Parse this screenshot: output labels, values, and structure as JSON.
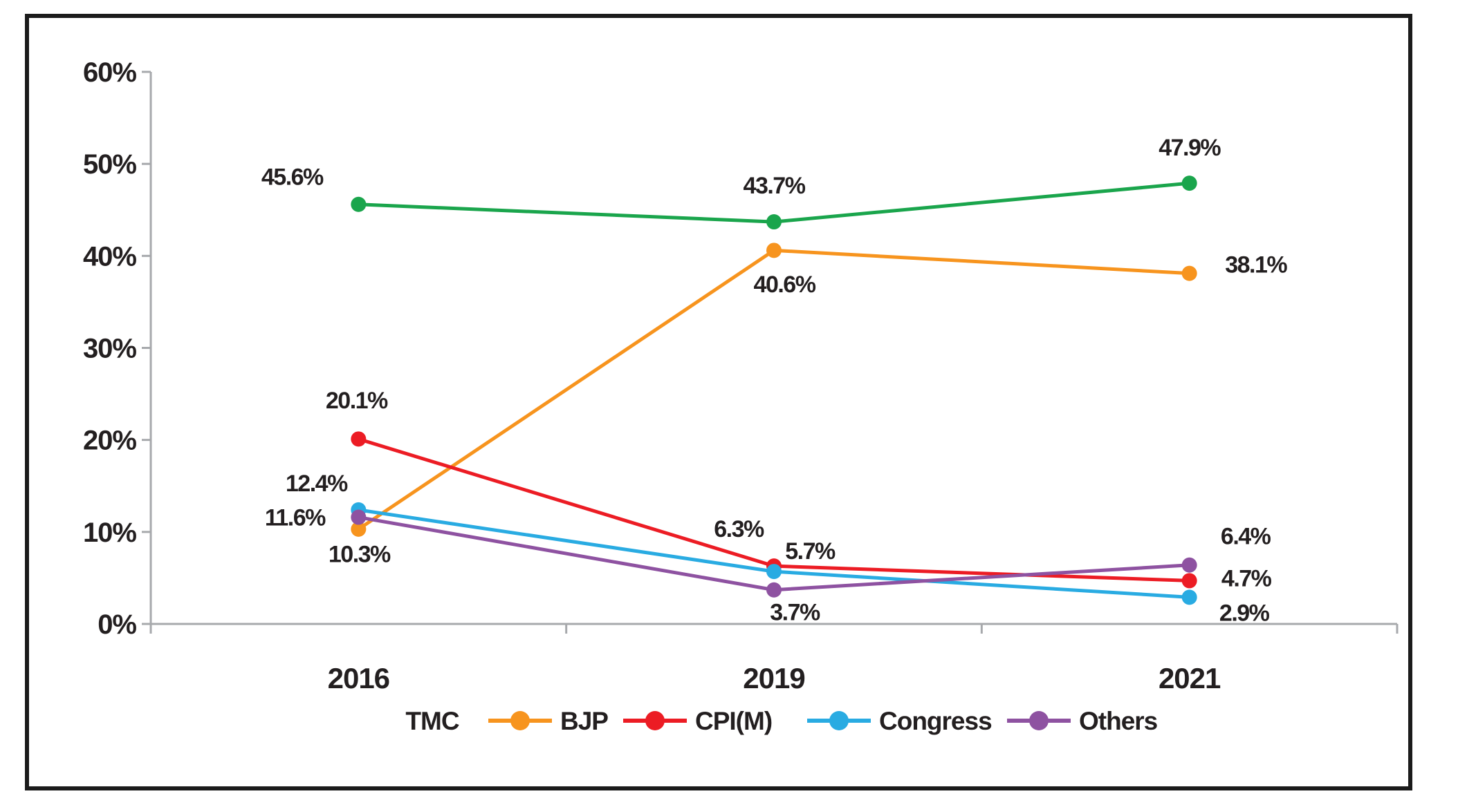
{
  "chart_data": {
    "type": "line",
    "title": "",
    "categories": [
      "2016",
      "2019",
      "2021"
    ],
    "series": [
      {
        "name": "TMC",
        "color": "#1AA54C",
        "values": [
          45.6,
          43.7,
          47.9
        ],
        "point_labels": [
          "45.6%",
          "43.7%",
          "47.9%"
        ],
        "legend_marker": false
      },
      {
        "name": "BJP",
        "color": "#F7941E",
        "values": [
          10.3,
          40.6,
          38.1
        ],
        "point_labels": [
          "10.3%",
          "40.6%",
          "38.1%"
        ],
        "legend_marker": true
      },
      {
        "name": "CPI(M)",
        "color": "#EC1C24",
        "values": [
          20.1,
          6.3,
          4.7
        ],
        "point_labels": [
          "20.1%",
          "6.3%",
          "4.7%"
        ],
        "legend_marker": true
      },
      {
        "name": "Congress",
        "color": "#29ABE2",
        "values": [
          12.4,
          5.7,
          2.9
        ],
        "point_labels": [
          "12.4%",
          "5.7%",
          "2.9%"
        ],
        "legend_marker": true
      },
      {
        "name": "Others",
        "color": "#8E52A1",
        "values": [
          11.6,
          3.7,
          6.4
        ],
        "point_labels": [
          "11.6%",
          "3.7%",
          "6.4%"
        ],
        "legend_marker": true
      }
    ],
    "y_axis": {
      "min": 0,
      "max": 60,
      "step": 10,
      "tick_labels": [
        "0%",
        "10%",
        "20%",
        "30%",
        "40%",
        "50%",
        "60%"
      ]
    },
    "x_axis": {
      "tick_labels": [
        "2016",
        "2019",
        "2021"
      ]
    },
    "legend": {
      "position": "bottom",
      "entries": [
        "TMC",
        "BJP",
        "CPI(M)",
        "Congress",
        "Others"
      ]
    },
    "grid": "off",
    "label_offsets": {
      "TMC": [
        [
          -96,
          -40
        ],
        [
          0,
          -53
        ],
        [
          0,
          -52
        ]
      ],
      "BJP": [
        [
          1,
          36
        ],
        [
          15,
          49
        ],
        [
          96,
          -13
        ]
      ],
      "CPI(M)": [
        [
          -3,
          -56
        ],
        [
          -51,
          -54
        ],
        [
          82,
          -4
        ]
      ],
      "Congress": [
        [
          -61,
          -39
        ],
        [
          52,
          -30
        ],
        [
          79,
          22
        ]
      ],
      "Others": [
        [
          -92,
          0
        ],
        [
          30,
          32
        ],
        [
          81,
          -42
        ]
      ]
    },
    "colors": {
      "axis": "#A7A9AC",
      "text": "#231F20"
    }
  }
}
